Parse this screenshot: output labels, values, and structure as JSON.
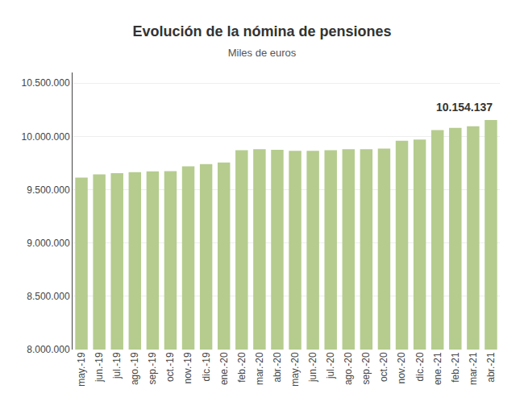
{
  "chart_data": {
    "type": "bar",
    "title": "Evolución de la nómina de pensiones",
    "subtitle": "Miles de euros",
    "annotation": "10.154.137",
    "categories": [
      "may.-19",
      "jun.-19",
      "jul.-19",
      "ago.-19",
      "sep.-19",
      "oct.-19",
      "nov.-19",
      "dic.-19",
      "ene.-20",
      "feb.-20",
      "mar.-20",
      "abr.-20",
      "may.-20",
      "jun.-20",
      "jul.-20",
      "ago.-20",
      "sep.-20",
      "oct.-20",
      "nov.-20",
      "dic.-20",
      "ene.-21",
      "feb.-21",
      "mar.-21",
      "abr.-21"
    ],
    "values": [
      9613000,
      9643000,
      9655000,
      9665000,
      9672000,
      9675000,
      9720000,
      9740000,
      9755000,
      9870000,
      9880000,
      9875000,
      9865000,
      9865000,
      9870000,
      9880000,
      9880000,
      9885000,
      9960000,
      9970000,
      10060000,
      10080000,
      10095000,
      10154137
    ],
    "color": "#b5cc8e",
    "ylim": [
      8000000,
      10600000
    ],
    "yticks": [
      {
        "value": 8000000,
        "label": "8.000.000"
      },
      {
        "value": 8500000,
        "label": "8.500.000"
      },
      {
        "value": 9000000,
        "label": "9.000.000"
      },
      {
        "value": 9500000,
        "label": "9.500.000"
      },
      {
        "value": 10000000,
        "label": "10.000.000"
      },
      {
        "value": 10500000,
        "label": "10.500.000"
      }
    ],
    "grid": true
  }
}
